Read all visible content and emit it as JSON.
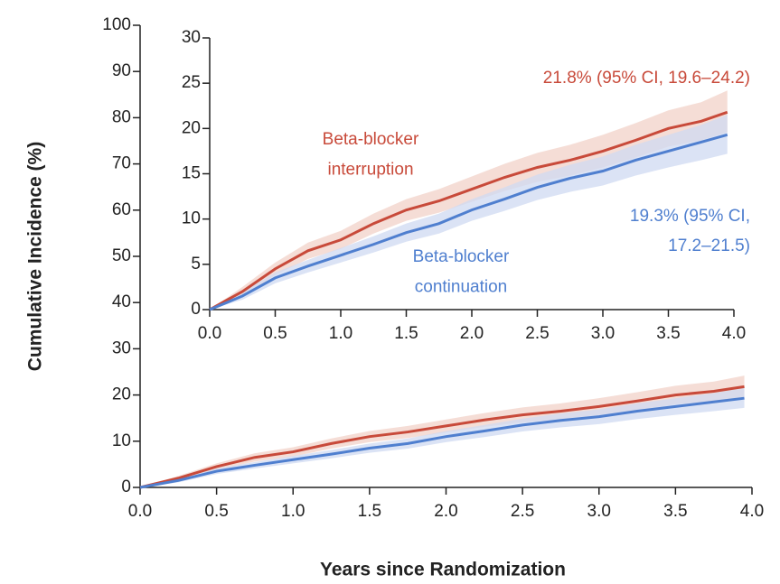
{
  "chart_data": [
    {
      "type": "line",
      "xlabel": "Years since Randomization",
      "ylabel": "Cumulative Incidence (%)",
      "xlim": [
        0,
        4
      ],
      "ylim": [
        0,
        100
      ],
      "xticks": [
        {
          "value": 0,
          "label": "0.0"
        },
        0.5,
        {
          "value": 1,
          "label": "1.0"
        },
        1.5,
        {
          "value": 2,
          "label": "2.0"
        },
        2.5,
        {
          "value": 3,
          "label": "3.0"
        },
        3.5,
        {
          "value": 4,
          "label": "4.0"
        }
      ],
      "yticks": [
        0,
        10,
        20,
        30,
        40,
        50,
        60,
        70,
        80,
        90,
        100
      ],
      "x": [
        0,
        0.25,
        0.5,
        0.75,
        1.0,
        1.25,
        1.5,
        1.75,
        2.0,
        2.25,
        2.5,
        2.75,
        3.0,
        3.25,
        3.5,
        3.75,
        3.95
      ],
      "series": [
        {
          "name": "Beta-blocker interruption",
          "color": "#c84a3a",
          "band_color": "#f2d2c8",
          "values": [
            0,
            2,
            4.5,
            6.5,
            7.7,
            9.5,
            11,
            12,
            13.3,
            14.6,
            15.7,
            16.5,
            17.5,
            18.7,
            20,
            20.8,
            21.8
          ],
          "ci_lower": [
            0,
            1.5,
            3.8,
            5.6,
            6.7,
            8.4,
            9.8,
            10.7,
            11.9,
            13.1,
            14.1,
            14.8,
            15.7,
            16.8,
            18,
            18.7,
            19.6
          ],
          "ci_upper": [
            0,
            2.5,
            5.2,
            7.4,
            8.7,
            10.6,
            12.2,
            13.3,
            14.7,
            16.1,
            17.3,
            18.2,
            19.3,
            20.6,
            22,
            22.9,
            24.2
          ]
        },
        {
          "name": "Beta-blocker continuation",
          "color": "#4f7fcf",
          "band_color": "#cfdaf2",
          "values": [
            0,
            1.5,
            3.5,
            4.8,
            6,
            7.2,
            8.5,
            9.5,
            11,
            12.2,
            13.5,
            14.5,
            15.3,
            16.5,
            17.5,
            18.5,
            19.3
          ],
          "ci_lower": [
            0,
            1.1,
            2.9,
            4.1,
            5.2,
            6.3,
            7.5,
            8.4,
            9.8,
            10.9,
            12.1,
            13,
            13.7,
            14.8,
            15.7,
            16.5,
            17.2
          ],
          "ci_upper": [
            0,
            1.9,
            4.1,
            5.5,
            6.8,
            8.1,
            9.5,
            10.6,
            12.2,
            13.5,
            14.9,
            16,
            16.9,
            18.2,
            19.3,
            20.4,
            21.5
          ]
        }
      ]
    },
    {
      "type": "line",
      "xlim": [
        0,
        4
      ],
      "ylim": [
        0,
        30
      ],
      "xticks": [
        {
          "value": 0,
          "label": "0.0"
        },
        0.5,
        {
          "value": 1,
          "label": "1.0"
        },
        1.5,
        {
          "value": 2,
          "label": "2.0"
        },
        2.5,
        {
          "value": 3,
          "label": "3.0"
        },
        3.5,
        {
          "value": 4,
          "label": "4.0"
        }
      ],
      "yticks": [
        0,
        5,
        10,
        15,
        20,
        25,
        30
      ],
      "end_labels": [
        [
          "21.8% (95% CI, 19.6–24.2)"
        ],
        [
          "19.3% (95% CI,",
          "17.2–21.5)"
        ]
      ]
    }
  ]
}
